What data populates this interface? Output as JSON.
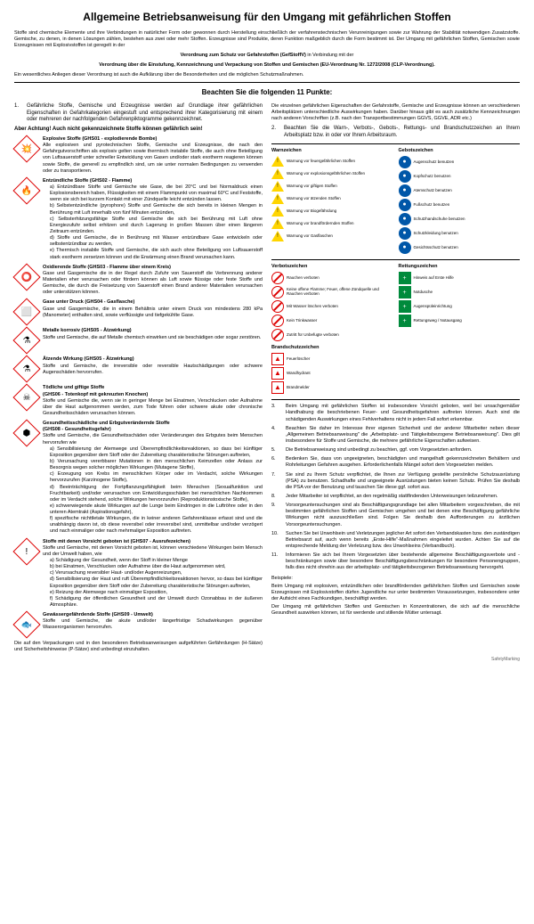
{
  "title": "Allgemeine Betriebsanweisung für den Umgang mit gefährlichen Stoffen",
  "intro": "Stoffe sind chemische Elemente und ihre Verbindungen in natürlicher Form oder gewonnen durch Herstellung einschließlich der verfahrenstechnischen Verunreinigungen sowie zur Wahrung der Stabilität notwendigen Zusatzstoffe. Gemische, zu denen, in denen Lösungen zählen, bestehen aus zwei oder mehr Stoffen. Erzeugnisse sind Produkte, deren Funktion maßgeblich durch die Form bestimmt ist. Der Umgang mit gefährlichen Stoffen, Gemischen sowie Erzeugnissen mit Explosivstoffen ist geregelt in der",
  "reg1": "Verordnung zum Schutz vor Gefahrstoffen (GefStoffV)",
  "reg_mid": " in Verbindung mit der",
  "reg2": "Verordnung über die Einstufung, Kennzeichnung und Verpackung von Stoffen und Gemischen (EU-Verordnung Nr. 1272/2008 (CLP-Verordnung).",
  "reg_after": "Ein wesentliches Anliegen dieser Verordnung ist auch die Aufklärung über die Besonderheiten und die möglichen Schutzmaßnahmen.",
  "subtitle": "Beachten Sie die folgenden 11 Punkte:",
  "item1": "Gefährliche Stoffe, Gemische und Erzeugnisse werden auf Grundlage ihrer gefährlichen Eigenschaften in Gefahrkategorien eingestuft und entsprechend ihrer Kategorisierung mit einem oder mehreren der nachfolgenden Gefahrenpiktogramme gekennzeichnet.",
  "achtung": "Aber Achtung!  Auch nicht gekennzeichnete Stoffe können gefährlich sein!",
  "ghs": [
    {
      "t": "Explosive Stoffe (GHS01 - explodierende Bombe)",
      "d": "Alle explosiven und pyrotechnischen Stoffe, Gemische und Erzeugnisse, die nach den Gefahrgutvorschriften als explosiv gelten sowie thermisch instabile Stoffe, die auch ohne Beteiligung von Luftsauerstoff unter schneller Entwicklung von Gasen und/oder stark exotherm reagieren können sowie Stoffe, die generell zu empfindlich sind, um sie unter normalen Bedingungen zu verwenden oder zu transportieren.",
      "i": "💥"
    },
    {
      "t": "Entzündliche Stoffe (GHS02 - Flamme)",
      "d": "",
      "i": "🔥",
      "sub": [
        "Entzündbare Stoffe und Gemische wie Gase, die bei 20°C und bei Normaldruck einen Explosionsbereich haben, Flüssigkeiten mit einem Flammpunkt von maximal 60°C und Feststoffe, wenn sie sich bei kurzem Kontakt mit einer Zündquelle leicht entzünden lassen.",
        "Selbstentzündliche (pyrophore) Stoffe und Gemische die sich bereits in kleinen Mengen in Berührung mit Luft innerhalb von fünf Minuten entzünden,",
        "Selbsterhitzungsfähige Stoffe und Gemische die sich bei Berührung mit Luft ohne Energiezufuhr selbst erhitzen und durch Lagerung in großen Massen über einen längeren Zeitraum entzünden.",
        "Stoffe und Gemische, die in Berührung mit Wasser entzündbare Gase entwickeln oder selbstentzündbar zu werden,",
        "Thermisch instabile Stoffe und Gemische, die sich auch ohne Beteiligung von Luftsauerstoff stark exotherm zersetzen können und die Erwärmung einen Brand verursachen kann."
      ]
    },
    {
      "t": "Oxidierende Stoffe (GHS03 - Flamme über einem Kreis)",
      "d": "Gase und Gasgemische die in der Regel durch Zufuhr von Sauerstoff die Verbrennung anderer Materialien eher verursachen oder fördern können als Luft sowie flüssige oder feste Stoffe und Gemische, die durch die Freisetzung von Sauerstoff einen Brand anderer Materialien verursachen oder unterstützen können.",
      "i": "⭕"
    },
    {
      "t": "Gase unter Druck (GHS04 - Gasflasche)",
      "d": "Gase und Gasgemische, die in einem Behältnis unter einem Druck von mindestens 280 kPa (Manometer) enthalten sind, sowie verflüssigte und tiefgekühlte Gase.",
      "i": "⬜"
    },
    {
      "t": "Metalle korrosiv (GHS05 - Ätzwirkung)",
      "d": "Stoffe und Gemische, die auf Metalle chemisch einwirken und sie beschädigen oder sogar zerstören.",
      "i": "⚗"
    },
    {
      "t": "Ätzende Wirkung (GHS05 - Ätzwirkung)",
      "d": "Stoffe und Gemische, die irreversible oder reversible Hautschädigungen oder schwere Augenschäden hervorrufen.",
      "i": "⚗"
    },
    {
      "t": "Tödliche und giftige Stoffe\n(GHS06 - Totenkopf mit gekreuzten Knochen)",
      "d": "Stoffe und Gemische die, wenn sie in geringer Menge bei Einatmen, Verschlucken oder Aufnahme über die Haut aufgenommen werden, zum Tode führen oder schwere akute oder chronische Gesundheitsschäden verursachen können.",
      "i": "☠"
    },
    {
      "t": "Gesundheitsschädliche und Erbgutverändernde Stoffe\n(GHS08 - Gesundheitsgefahr)",
      "d": "Stoffe und Gemische, die Gesundheitsschäden oder Veränderungen des Erbgutes beim Menschen hervorrufen wie",
      "i": "⬢",
      "sub": [
        "Sensibilisierung der Atemwege und Überempfindlichkeitsreaktionen, so dass bei künftiger Exposition gegenüber dem Stoff oder der Zubereitung charakteristische Störungen auftreten,",
        "Verursachung vererbbarer Mutationen in den menschlichen Keimzellen oder Anlass zur Besorgnis wegen solcher möglichen Wirkungen (Mutagene Stoffe),",
        "Erzeugung von Krebs im menschlichen Körper oder im Verdacht, solche Wirkungen hervorzurufen (Karzinogene Stoffe),",
        "Beeinträchtigung der Fortpflanzungsfähigkeit beim Menschen (Sexualfunktion und Fruchtbarkeit) und/oder verursachen von Entwicklungsschäden bei menschlichen Nachkommen oder im Verdacht stehend, solche Wirkungen hervorzurufen (Reproduktions­toxische Stoffe),",
        "schwerwiegende akute Wirkungen auf die Lunge beim Eindringen in die Luftröhre oder in den unteren Atemtrakt (Aspirationsgefahr),",
        "spezifische nichttletale Wirkungen, die in keiner anderen Gefahrenklasse erfasst sind und die unabhängig davon ist, ob diese reversibel oder irreversibel sind, unmittelbar und/oder verzögert und nach einmaliger oder nach mehrmaliger Exposition auftreten."
      ]
    },
    {
      "t": "Stoffe mit denen Vorsicht geboten ist (GHS07 - Ausrufezeichen)",
      "d": "Stoffe und Gemische, mit denen Vorsicht geboten ist, können verschiedene Wirkungen beim Mensch und der Umwelt haben, wie",
      "i": "!",
      "sub": [
        "Schädigung der Gesundheit, wenn der Stoff in kleiner Menge",
        "bei Einatmen, Verschlucken oder Aufnahme über die Haut aufgenommen wird,",
        "Verursachung reversibler Haut- und/oder Augenreizungen,",
        "Sensibilisierung der Haut und ruft Überempfindlichkeitsreaktionen hervor, so dass bei künftiger Exposition gegenüber dem Stoff oder der Zubereitung charakteristische Störungen auftreten,",
        "Reizung der Atemwege nach einmaliger Exposition,",
        "Schädigung der öffentlichen Gesundheit und der Umwelt durch Ozonabbau in der äußeren Atmosphäre."
      ]
    },
    {
      "t": "Gewässergefährdende Stoffe (GHS09 - Umwelt)",
      "d": "Stoffe und Gemische, die akute und/oder längerfristige Schadwirkungen gegenüber Wasserorganismen hervorrufen.",
      "i": "🐟"
    }
  ],
  "left_foot": "Die auf den Verpackungen und in den besonderen Betriebsanweisungen aufgeführten Gefährdungen (H-Sätze) und Sicherheitshinweise (P-Sätze) sind unbedingt einzuhalten.",
  "right_intro": "Die einzelnen gefährlichen Eigenschaften der Gefahrstoffe, Gemische und Erzeugnisse können an verschiedenen Arbeitsplätzen unterschiedliche Auswirkungen haben. Darüber hinaus gibt es auch zusätzliche Kennzeichnungen nach anderen Vorschriften (z.B. nach den Transportbestimmungen GGVS, GGVE, ADR etc.)",
  "item2": "Beachten Sie die Warn-, Verbots-, Gebots-, Rettungs- und Brandschutzzeichen an Ihrem Arbeitsplatz bzw. in oder vor Ihrem Arbeitsraum.",
  "warn_title": "Warnzeichen",
  "gebot_title": "Gebotszeichen",
  "verbot_title": "Verbotszeichen",
  "rettung_title": "Rettungszeichen",
  "brand_title": "Brandschutzzeichen",
  "warn": [
    "Warnung vor feuergefährlichen Stoffen",
    "Warnung vor explosionsgefährlichen Stoffen",
    "Warnung vor giftigen Stoffen",
    "Warnung vor ätzenden Stoffen",
    "Warnung vor Biogefährdung",
    "Warnung vor brandfördernden Stoffen",
    "Warnung vor Gasflaschen"
  ],
  "gebot": [
    "Augenschutz benutzen",
    "Kopfschutz benutzen",
    "Atemschutz benutzen",
    "Fußschutz benutzen",
    "Schutzhandschuhe benutzen",
    "Schutzkleidung benutzen",
    "Gesichtsschutz benutzen"
  ],
  "verbot": [
    "Rauchen verboten",
    "Keine offene Flamme; Feuer, offene Zündquelle und Rauchen verboten",
    "Mit Wasser löschen verboten",
    "Kein Trinkwasser",
    "Zutritt für Unbefugte verboten"
  ],
  "rettung": [
    "Hinweis auf Erste Hilfe",
    "Notdusche",
    "Augenspül­einrichtung",
    "Rettungsweg / Notausgang"
  ],
  "brand": [
    "Feuerlöscher",
    "Wandhydrant",
    "Brandmelder"
  ],
  "items_rest": [
    {
      "n": "3.",
      "t": "Beim Umgang mit gefährlichen Stoffen ist insbesondere Vorsicht geboten, weil bei unsachgemäßer Handhabung die beschriebenen Feuer- und Gesundheitsgefahren auftreten können. Auch sind die schädigenden Auswirkungen eines Fehlverhaltens nicht in jedem Fall sofort erkennbar."
    },
    {
      "n": "4.",
      "t": "Beachten Sie daher im Interesse ihrer eigenen Sicherheit und der anderer Mitarbeiter neben dieser „Allgemeinen Betriebsanweisung\" die „Arbeitsplatz- und Tätigkeitsbezogene Betriebsanweisung\". Dies gilt insbesondere für Stoffe und Gemische, die mehrere gefährliche Eigenschaften aufweisen."
    },
    {
      "n": "5.",
      "t": "Die Betriebsanweisung sind unbedingt zu beachten, ggf. vom Vorgesetzten anfordern."
    },
    {
      "n": "6.",
      "t": "Bedenken Sie, dass von ungeeigneten, beschädigten und mangelhaft gekennzeichneten Behältern und Rohrleitungen Gefahren ausgehen. Erforderlichenfalls Mängel sofort dem Vorgesetzten melden."
    },
    {
      "n": "7.",
      "t": "Sie sind zu Ihrem Schutz verpflichtet, die Ihnen zur Verfügung gestellte persönliche Schutzausrüstung (PSA) zu benutzen. Schadhafte und ungeeignete Ausrüstungen bieten keinen Schutz. Prüfen Sie deshalb die PSA vor der Benutzung und tauschen Sie diese ggf. sofort aus."
    },
    {
      "n": "8.",
      "t": "Jeder Mitarbeiter ist verpflichtet, an den regelmäßig stattfindenden Unterweisungen teilzunehmen."
    },
    {
      "n": "9.",
      "t": "Vorsorgeuntersuchungen sind als Beschäftigungsgrundlage bei allen Mitarbeitern vorgeschrieben, die mit bestimmten gefährlichen Stoffen und Gemischen umgehen und bei denen eine Beschäftigung gefährliche Wirkungen nicht auszuschließen sind. Folgen Sie deshalb den Aufforderungen zu ärztlichen Vorsorgeuntersuchungen."
    },
    {
      "n": "10.",
      "t": "Suchen Sie bei Unwohlsein und Verletzungen jeglicher Art sofort den Verbandskasten bzw. den zuständigen Betriebsarzt auf, auch wenn bereits „Erste-Hilfe\"-Maßnahmen eingeleitet wurden. Achten Sie auf die entsprechende Meldung der Verletzung bzw. des Unwohlseins (Verbandbuch)."
    },
    {
      "n": "11.",
      "t": "Informieren Sie sich bei Ihrem Vorgesetzten über bestehende allgemeine Beschäftigungsverbote und -beschränkungen sowie über besondere Beschäftigungsbeschränkungen für besondere Personengruppen, falls dies nicht ohnehin aus der arbeitsplatz- und tätigkeitsbezogenen Betriebsanweisung hervorgeht."
    }
  ],
  "beispiele_t": "Beispiele:",
  "beispiele1": "Beim Umgang mit explosiven, entzündlichen oder brandfördernden gefährlichen Stoffen und Gemischen sowie Erzeugnissen mit Explosivstoffen dürfen Jugendliche nur unter bestimmten Voraussetzungen, insbesondere unter der Aufsicht eines Fachkundigen, beschäftigt werden.",
  "beispiele2": "Der Umgang mit gefährlichen Stoffen und Gemischen in Konzentrationen, die sich auf die menschliche Gesundheit auswirken können, ist für werdende und stillende Mütter untersagt.",
  "footer": "SafetyMarking"
}
